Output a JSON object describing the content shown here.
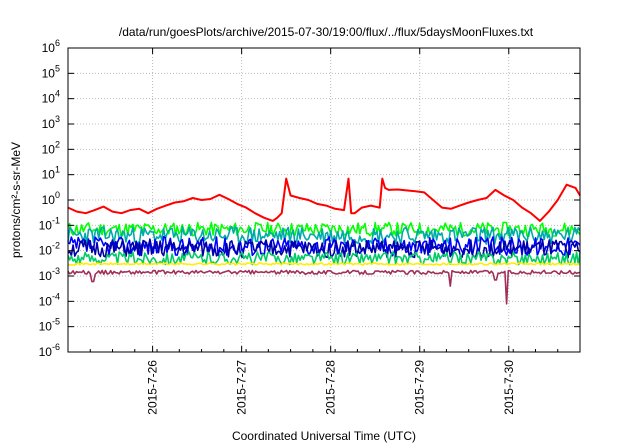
{
  "chart_data": {
    "type": "line",
    "title": "/data/run/goesPlots/archive/2015-07-30/19:00/flux/../flux/5daysMoonFluxes.txt",
    "xlabel": "Coordinated Universal Time (UTC)",
    "ylabel": "protons/cm²-s-sr-MeV",
    "yscale": "log",
    "ylim": [
      1e-06,
      1000000.0
    ],
    "y_ticks": [
      {
        "exp": "-6"
      },
      {
        "exp": "-5"
      },
      {
        "exp": "-4"
      },
      {
        "exp": "-3"
      },
      {
        "exp": "-2"
      },
      {
        "exp": "-1"
      },
      {
        "exp": "0"
      },
      {
        "exp": "1"
      },
      {
        "exp": "2"
      },
      {
        "exp": "3"
      },
      {
        "exp": "4"
      },
      {
        "exp": "5"
      },
      {
        "exp": "6"
      }
    ],
    "x_ticks": [
      "2015-7-26",
      "2015-7-27",
      "2015-7-28",
      "2015-7-29",
      "2015-7-30"
    ],
    "grid": true,
    "legend": "none",
    "series": [
      {
        "color": "#ff0000",
        "x": [
          0.0,
          0.1,
          0.2,
          0.3,
          0.4,
          0.5,
          0.6,
          0.7,
          0.8,
          0.9,
          1.0,
          1.1,
          1.2,
          1.3,
          1.4,
          1.5,
          1.6,
          1.7,
          1.8,
          1.9,
          2.0,
          2.1,
          2.2,
          2.3,
          2.35,
          2.4,
          2.45,
          2.5,
          2.6,
          2.7,
          2.8,
          2.9,
          3.0,
          3.1,
          3.15,
          3.18,
          3.22,
          3.3,
          3.4,
          3.5,
          3.53,
          3.56,
          3.6,
          3.7,
          3.8,
          3.9,
          4.0,
          4.1,
          4.2,
          4.3,
          4.4,
          4.5,
          4.6,
          4.7,
          4.8,
          4.9,
          5.0,
          5.1,
          5.2,
          5.3,
          5.4,
          5.5,
          5.6,
          5.7,
          5.75
        ],
        "values": [
          0.5,
          0.35,
          0.3,
          0.4,
          0.55,
          0.35,
          0.3,
          0.4,
          0.45,
          0.3,
          0.45,
          0.6,
          0.8,
          0.9,
          1.2,
          1.0,
          1.1,
          1.6,
          1.1,
          0.7,
          0.5,
          0.3,
          0.2,
          0.15,
          0.2,
          0.3,
          7.0,
          1.5,
          1.2,
          1.0,
          0.7,
          0.6,
          0.45,
          0.4,
          7.0,
          0.3,
          0.3,
          0.5,
          0.6,
          0.5,
          7.0,
          3.0,
          2.5,
          2.6,
          2.4,
          2.2,
          2.0,
          1.0,
          0.5,
          0.45,
          0.6,
          0.8,
          1.0,
          1.2,
          2.5,
          1.5,
          1.0,
          0.5,
          0.3,
          0.15,
          0.35,
          1.0,
          4.0,
          3.0,
          1.5
        ]
      },
      {
        "color": "#00ff00",
        "base": 0.07,
        "seed": 11,
        "amp": 0.55
      },
      {
        "color": "#00aaaa",
        "base": 0.04,
        "seed": 23,
        "amp": 0.7
      },
      {
        "color": "#0000ff",
        "base": 0.015,
        "seed": 37,
        "amp": 0.75
      },
      {
        "color": "#0000aa",
        "base": 0.012,
        "seed": 51,
        "amp": 0.7
      },
      {
        "color": "#00cc66",
        "base": 0.005,
        "seed": 63,
        "amp": 0.5
      },
      {
        "color": "#ffee00",
        "base": 0.003,
        "seed": 71,
        "amp": 0.08
      },
      {
        "color": "#a0305a",
        "base": 0.0014,
        "seed": 89,
        "amp": 0.15,
        "dips": [
          [
            0.28,
            0.0006
          ],
          [
            4.3,
            0.0004
          ],
          [
            4.8,
            0.0007
          ],
          [
            4.92,
            8e-05
          ]
        ]
      }
    ]
  }
}
